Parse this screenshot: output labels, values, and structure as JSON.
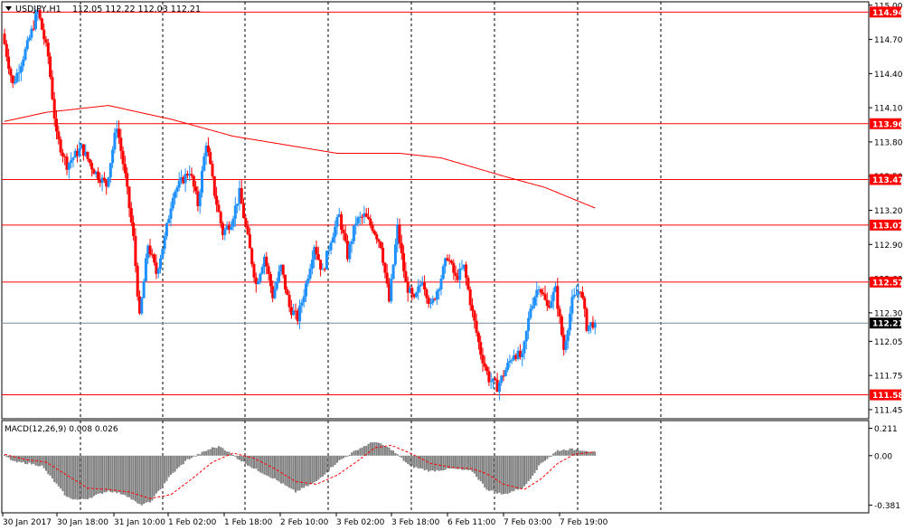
{
  "header": {
    "symbol_label": "USDJPY,H1",
    "ohlc_label": "112.05 112.22 112.03 112.21"
  },
  "macd_header": {
    "label": "MACD(12,26,9) 0.008 0.026"
  },
  "colors": {
    "bull": "#1e90ff",
    "bear": "#ff0000",
    "level_line": "#ff0000",
    "ma_line": "#ff0000",
    "grid": "#000000",
    "histogram": "#808080",
    "signal": "#ff0000",
    "current_price_line": "#778899",
    "current_price_badge": "#000000"
  },
  "price_axis": {
    "ticks": [
      "115.00",
      "114.70",
      "114.40",
      "114.10",
      "113.80",
      "113.50",
      "113.20",
      "112.90",
      "112.60",
      "112.30",
      "112.05",
      "111.75",
      "111.45"
    ],
    "range": [
      111.37,
      115.03
    ]
  },
  "macd_axis": {
    "ticks": [
      "0.211",
      "0.00",
      "-0.381"
    ],
    "range": [
      -0.44,
      0.27
    ]
  },
  "time_axis": {
    "labels": [
      "30 Jan 2017",
      "30 Jan 18:00",
      "31 Jan 10:00",
      "1 Feb 02:00",
      "1 Feb 18:00",
      "2 Feb 10:00",
      "3 Feb 02:00",
      "3 Feb 18:00",
      "6 Feb 11:00",
      "7 Feb 03:00",
      "7 Feb 19:00"
    ]
  },
  "chart_data": {
    "type": "candlestick",
    "symbol": "USDJPY",
    "timeframe": "H1",
    "current_price": 112.21,
    "current_price_label": "112.21",
    "levels": [
      {
        "value": 114.94,
        "label": "114.94"
      },
      {
        "value": 113.96,
        "label": "113.96"
      },
      {
        "value": 113.47,
        "label": "113.47"
      },
      {
        "value": 113.07,
        "label": "113.07"
      },
      {
        "value": 112.57,
        "label": "112.57"
      },
      {
        "value": 111.58,
        "label": "111.58"
      }
    ],
    "anchors": [
      [
        0,
        114.75
      ],
      [
        5,
        114.3
      ],
      [
        12,
        114.65
      ],
      [
        17,
        114.95
      ],
      [
        22,
        114.55
      ],
      [
        26,
        113.85
      ],
      [
        31,
        113.6
      ],
      [
        38,
        113.75
      ],
      [
        44,
        113.55
      ],
      [
        50,
        113.42
      ],
      [
        55,
        113.95
      ],
      [
        59,
        113.5
      ],
      [
        63,
        112.95
      ],
      [
        66,
        112.25
      ],
      [
        70,
        112.9
      ],
      [
        74,
        112.65
      ],
      [
        78,
        112.95
      ],
      [
        82,
        113.35
      ],
      [
        86,
        113.45
      ],
      [
        90,
        113.55
      ],
      [
        94,
        113.25
      ],
      [
        98,
        113.8
      ],
      [
        102,
        113.35
      ],
      [
        106,
        113.0
      ],
      [
        110,
        113.1
      ],
      [
        114,
        113.35
      ],
      [
        118,
        112.95
      ],
      [
        122,
        112.55
      ],
      [
        126,
        112.8
      ],
      [
        130,
        112.45
      ],
      [
        134,
        112.7
      ],
      [
        138,
        112.35
      ],
      [
        142,
        112.25
      ],
      [
        146,
        112.55
      ],
      [
        150,
        112.9
      ],
      [
        154,
        112.65
      ],
      [
        158,
        112.95
      ],
      [
        162,
        113.15
      ],
      [
        166,
        112.8
      ],
      [
        170,
        113.1
      ],
      [
        174,
        113.15
      ],
      [
        178,
        113.05
      ],
      [
        182,
        112.9
      ],
      [
        186,
        112.4
      ],
      [
        190,
        113.05
      ],
      [
        194,
        112.55
      ],
      [
        198,
        112.4
      ],
      [
        202,
        112.6
      ],
      [
        206,
        112.35
      ],
      [
        210,
        112.55
      ],
      [
        214,
        112.8
      ],
      [
        218,
        112.6
      ],
      [
        222,
        112.7
      ],
      [
        226,
        112.3
      ],
      [
        230,
        111.95
      ],
      [
        234,
        111.72
      ],
      [
        238,
        111.65
      ],
      [
        242,
        111.8
      ],
      [
        246,
        111.95
      ],
      [
        250,
        111.9
      ],
      [
        254,
        112.35
      ],
      [
        258,
        112.55
      ],
      [
        262,
        112.35
      ],
      [
        266,
        112.5
      ],
      [
        270,
        111.98
      ],
      [
        274,
        112.4
      ],
      [
        278,
        112.52
      ],
      [
        281,
        112.18
      ],
      [
        284,
        112.21
      ]
    ],
    "ma_anchors": [
      [
        0,
        113.98
      ],
      [
        20,
        114.06
      ],
      [
        50,
        114.12
      ],
      [
        80,
        114.0
      ],
      [
        110,
        113.85
      ],
      [
        140,
        113.76
      ],
      [
        160,
        113.7
      ],
      [
        190,
        113.7
      ],
      [
        210,
        113.66
      ],
      [
        240,
        113.5
      ],
      [
        260,
        113.4
      ],
      [
        284,
        113.22
      ]
    ],
    "macd_hist_anchors": [
      [
        0,
        0.0
      ],
      [
        5,
        -0.05
      ],
      [
        12,
        -0.06
      ],
      [
        18,
        -0.08
      ],
      [
        25,
        -0.22
      ],
      [
        30,
        -0.32
      ],
      [
        35,
        -0.34
      ],
      [
        40,
        -0.33
      ],
      [
        50,
        -0.27
      ],
      [
        58,
        -0.3
      ],
      [
        65,
        -0.38
      ],
      [
        70,
        -0.36
      ],
      [
        80,
        -0.15
      ],
      [
        88,
        -0.03
      ],
      [
        100,
        0.06
      ],
      [
        104,
        0.07
      ],
      [
        112,
        -0.02
      ],
      [
        120,
        -0.1
      ],
      [
        130,
        -0.18
      ],
      [
        140,
        -0.28
      ],
      [
        150,
        -0.2
      ],
      [
        160,
        -0.05
      ],
      [
        170,
        0.05
      ],
      [
        178,
        0.11
      ],
      [
        186,
        0.05
      ],
      [
        195,
        -0.08
      ],
      [
        205,
        -0.12
      ],
      [
        215,
        -0.1
      ],
      [
        225,
        -0.12
      ],
      [
        232,
        -0.26
      ],
      [
        240,
        -0.3
      ],
      [
        250,
        -0.24
      ],
      [
        258,
        -0.06
      ],
      [
        266,
        0.04
      ],
      [
        272,
        0.05
      ],
      [
        280,
        0.04
      ],
      [
        284,
        0.02
      ]
    ],
    "macd_signal_anchors": [
      [
        0,
        0.01
      ],
      [
        10,
        -0.03
      ],
      [
        20,
        -0.05
      ],
      [
        30,
        -0.15
      ],
      [
        40,
        -0.25
      ],
      [
        50,
        -0.26
      ],
      [
        60,
        -0.28
      ],
      [
        70,
        -0.33
      ],
      [
        80,
        -0.3
      ],
      [
        90,
        -0.18
      ],
      [
        100,
        -0.05
      ],
      [
        110,
        0.02
      ],
      [
        120,
        -0.02
      ],
      [
        130,
        -0.1
      ],
      [
        140,
        -0.2
      ],
      [
        150,
        -0.22
      ],
      [
        160,
        -0.15
      ],
      [
        170,
        -0.04
      ],
      [
        178,
        0.06
      ],
      [
        186,
        0.08
      ],
      [
        195,
        0.02
      ],
      [
        205,
        -0.06
      ],
      [
        215,
        -0.09
      ],
      [
        225,
        -0.1
      ],
      [
        232,
        -0.14
      ],
      [
        240,
        -0.22
      ],
      [
        250,
        -0.26
      ],
      [
        258,
        -0.18
      ],
      [
        266,
        -0.06
      ],
      [
        274,
        0.01
      ],
      [
        284,
        0.03
      ]
    ],
    "bar_count": 285,
    "price_ylim": [
      111.37,
      115.03
    ],
    "macd_ylim": [
      -0.44,
      0.27
    ],
    "grid": true
  }
}
